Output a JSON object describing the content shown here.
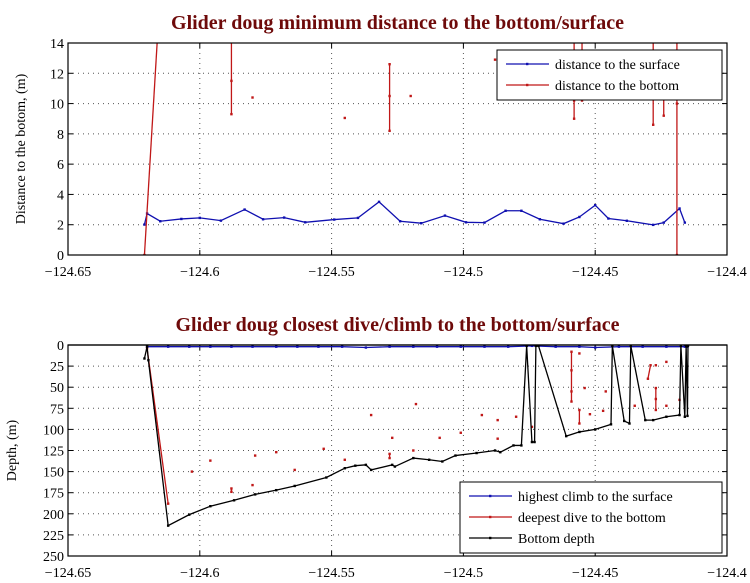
{
  "chart_data": [
    {
      "type": "line",
      "title": "Glider doug minimum distance to the bottom/surface",
      "xlabel": "",
      "ylabel": "Distance to the botom, (m)",
      "xlim": [
        -124.65,
        -124.4
      ],
      "ylim": [
        0,
        14
      ],
      "xticks": [
        "−124.65",
        "−124.6",
        "−124.55",
        "−124.5",
        "−124.45",
        "−124.4"
      ],
      "xtick_values": [
        -124.65,
        -124.6,
        -124.55,
        -124.5,
        -124.45,
        -124.4
      ],
      "yticks": [
        "0",
        "2",
        "4",
        "6",
        "8",
        "10",
        "12",
        "14"
      ],
      "ytick_values": [
        0,
        2,
        4,
        6,
        8,
        10,
        12,
        14
      ],
      "grid": true,
      "legend_placement": "top-right",
      "series": [
        {
          "name": "distance to the surface",
          "color": "#1010b0",
          "segments": [
            [
              [
                -124.621,
                2.01
              ],
              [
                -124.62,
                2.74
              ],
              [
                -124.615,
                2.23
              ],
              [
                -124.607,
                2.38
              ],
              [
                -124.6,
                2.45
              ],
              [
                -124.592,
                2.27
              ],
              [
                -124.583,
                3.0
              ],
              [
                -124.576,
                2.36
              ],
              [
                -124.568,
                2.47
              ],
              [
                -124.56,
                2.16
              ],
              [
                -124.549,
                2.34
              ],
              [
                -124.54,
                2.45
              ],
              [
                -124.532,
                3.51
              ],
              [
                -124.524,
                2.23
              ],
              [
                -124.516,
                2.1
              ],
              [
                -124.507,
                2.6
              ],
              [
                -124.499,
                2.16
              ],
              [
                -124.492,
                2.14
              ],
              [
                -124.484,
                2.92
              ],
              [
                -124.478,
                2.92
              ],
              [
                -124.471,
                2.36
              ],
              [
                -124.462,
                2.07
              ],
              [
                -124.456,
                2.51
              ],
              [
                -124.45,
                3.29
              ],
              [
                -124.445,
                2.41
              ],
              [
                -124.438,
                2.26
              ],
              [
                -124.428,
                1.99
              ],
              [
                -124.424,
                2.14
              ],
              [
                -124.418,
                3.07
              ],
              [
                -124.416,
                2.14
              ]
            ]
          ]
        },
        {
          "name": "distance to the bottom",
          "color": "#c01818",
          "segments": [
            [
              [
                -124.621,
                0
              ],
              [
                -124.6155,
                16
              ]
            ],
            [
              [
                -124.588,
                16
              ],
              [
                -124.588,
                11.5
              ],
              [
                -124.588,
                9.3
              ]
            ],
            [
              [
                -124.58,
                10.4
              ]
            ],
            [
              [
                -124.545,
                9.05
              ]
            ],
            [
              [
                -124.528,
                12.6
              ],
              [
                -124.528,
                10.5
              ],
              [
                -124.528,
                8.2
              ]
            ],
            [
              [
                -124.52,
                10.5
              ]
            ],
            [
              [
                -124.488,
                12.9
              ]
            ],
            [
              [
                -124.458,
                16
              ],
              [
                -124.458,
                10.2
              ],
              [
                -124.458,
                9.0
              ]
            ],
            [
              [
                -124.455,
                16
              ],
              [
                -124.455,
                10.2
              ]
            ],
            [
              [
                -124.428,
                16
              ],
              [
                -124.428,
                8.6
              ]
            ],
            [
              [
                -124.424,
                10.3
              ],
              [
                -124.424,
                9.2
              ]
            ],
            [
              [
                -124.419,
                16
              ],
              [
                -124.419,
                10.0
              ],
              [
                -124.419,
                0
              ]
            ]
          ]
        }
      ]
    },
    {
      "type": "line",
      "title": "Glider doug closest dive/climb to the bottom/surface",
      "xlabel": "",
      "ylabel": "Depth, (m)",
      "xlim": [
        -124.65,
        -124.4
      ],
      "ylim": [
        0,
        250
      ],
      "y_inverted": true,
      "xticks": [
        "−124.65",
        "−124.6",
        "−124.55",
        "−124.5",
        "−124.45",
        "−124.4"
      ],
      "xtick_values": [
        -124.65,
        -124.6,
        -124.55,
        -124.5,
        -124.45,
        -124.4
      ],
      "yticks": [
        "0",
        "25",
        "50",
        "75",
        "100",
        "125",
        "150",
        "175",
        "200",
        "225",
        "250"
      ],
      "ytick_values": [
        0,
        25,
        50,
        75,
        100,
        125,
        150,
        175,
        200,
        225,
        250
      ],
      "grid": true,
      "legend_placement": "bottom-right",
      "series": [
        {
          "name": "highest climb to the surface",
          "color": "#1010b0",
          "segments": [
            [
              [
                -124.62,
                2
              ],
              [
                -124.612,
                2
              ],
              [
                -124.604,
                2
              ],
              [
                -124.596,
                2
              ],
              [
                -124.588,
                2
              ],
              [
                -124.58,
                2
              ],
              [
                -124.571,
                2
              ],
              [
                -124.563,
                2
              ],
              [
                -124.555,
                2
              ],
              [
                -124.546,
                2
              ],
              [
                -124.537,
                3
              ],
              [
                -124.528,
                2
              ],
              [
                -124.519,
                2
              ],
              [
                -124.51,
                2
              ],
              [
                -124.501,
                2
              ],
              [
                -124.492,
                2
              ],
              [
                -124.483,
                2
              ],
              [
                -124.474,
                1
              ],
              [
                -124.465,
                2
              ],
              [
                -124.456,
                2
              ],
              [
                -124.45,
                3
              ],
              [
                -124.441,
                2
              ],
              [
                -124.432,
                2
              ],
              [
                -124.423,
                2
              ],
              [
                -124.416,
                2
              ],
              [
                -124.415,
                2
              ]
            ]
          ]
        },
        {
          "name": "deepest dive to the bottom",
          "color": "#c01818",
          "segments": [
            [
              [
                -124.62,
                4
              ],
              [
                -124.612,
                188
              ]
            ],
            [
              [
                -124.603,
                150
              ]
            ],
            [
              [
                -124.596,
                137
              ]
            ],
            [
              [
                -124.588,
                170
              ],
              [
                -124.588,
                174
              ]
            ],
            [
              [
                -124.58,
                166
              ]
            ],
            [
              [
                -124.579,
                131
              ]
            ],
            [
              [
                -124.571,
                127
              ]
            ],
            [
              [
                -124.564,
                148
              ]
            ],
            [
              [
                -124.553,
                123
              ]
            ],
            [
              [
                -124.545,
                136
              ]
            ],
            [
              [
                -124.535,
                83
              ]
            ],
            [
              [
                -124.528,
                129
              ],
              [
                -124.528,
                134
              ]
            ],
            [
              [
                -124.527,
                110
              ]
            ],
            [
              [
                -124.519,
                125
              ]
            ],
            [
              [
                -124.518,
                70
              ]
            ],
            [
              [
                -124.509,
                110
              ]
            ],
            [
              [
                -124.501,
                104
              ]
            ],
            [
              [
                -124.493,
                83
              ]
            ],
            [
              [
                -124.487,
                89
              ]
            ],
            [
              [
                -124.487,
                111
              ]
            ],
            [
              [
                -124.48,
                85
              ]
            ],
            [
              [
                -124.474,
                97
              ]
            ],
            [
              [
                -124.459,
                8
              ],
              [
                -124.459,
                30
              ],
              [
                -124.459,
                55
              ],
              [
                -124.459,
                67
              ]
            ],
            [
              [
                -124.456,
                10
              ]
            ],
            [
              [
                -124.454,
                51
              ]
            ],
            [
              [
                -124.456,
                77
              ],
              [
                -124.456,
                93
              ]
            ],
            [
              [
                -124.452,
                82
              ]
            ],
            [
              [
                -124.447,
                78
              ]
            ],
            [
              [
                -124.446,
                55
              ]
            ],
            [
              [
                -124.435,
                72
              ]
            ],
            [
              [
                -124.43,
                40
              ],
              [
                -124.429,
                24
              ]
            ],
            [
              [
                -124.427,
                24
              ]
            ],
            [
              [
                -124.423,
                20
              ]
            ],
            [
              [
                -124.427,
                51
              ],
              [
                -124.427,
                64
              ],
              [
                -124.427,
                77
              ]
            ],
            [
              [
                -124.423,
                72
              ]
            ],
            [
              [
                -124.418,
                65
              ]
            ]
          ]
        },
        {
          "name": "Bottom depth",
          "color": "#000000",
          "segments": [
            [
              [
                -124.621,
                16
              ],
              [
                -124.62,
                2
              ],
              [
                -124.6195,
                18
              ],
              [
                -124.612,
                214
              ],
              [
                -124.604,
                201
              ],
              [
                -124.596,
                191
              ],
              [
                -124.587,
                184
              ],
              [
                -124.579,
                177
              ],
              [
                -124.571,
                172
              ],
              [
                -124.564,
                167
              ],
              [
                -124.552,
                157
              ],
              [
                -124.545,
                146
              ],
              [
                -124.541,
                143
              ],
              [
                -124.537,
                142
              ],
              [
                -124.535,
                148
              ],
              [
                -124.527,
                142
              ],
              [
                -124.526,
                144
              ],
              [
                -124.519,
                134
              ],
              [
                -124.513,
                136
              ],
              [
                -124.508,
                138
              ],
              [
                -124.503,
                131
              ],
              [
                -124.495,
                128
              ],
              [
                -124.488,
                125
              ],
              [
                -124.486,
                127
              ],
              [
                -124.481,
                119
              ],
              [
                -124.478,
                119
              ],
              [
                -124.476,
                1
              ],
              [
                -124.474,
                115
              ],
              [
                -124.473,
                115
              ],
              [
                -124.4725,
                1
              ],
              [
                -124.4715,
                1
              ],
              [
                -124.461,
                108
              ],
              [
                -124.456,
                103
              ],
              [
                -124.45,
                100
              ],
              [
                -124.444,
                94
              ],
              [
                -124.4435,
                1
              ],
              [
                -124.439,
                90
              ],
              [
                -124.437,
                93
              ],
              [
                -124.4365,
                1
              ],
              [
                -124.431,
                89
              ],
              [
                -124.428,
                89
              ],
              [
                -124.423,
                85
              ],
              [
                -124.418,
                83
              ],
              [
                -124.4175,
                1
              ],
              [
                -124.416,
                85
              ],
              [
                -124.4155,
                1
              ],
              [
                -124.415,
                84
              ],
              [
                -124.4148,
                1
              ]
            ]
          ]
        }
      ]
    }
  ]
}
